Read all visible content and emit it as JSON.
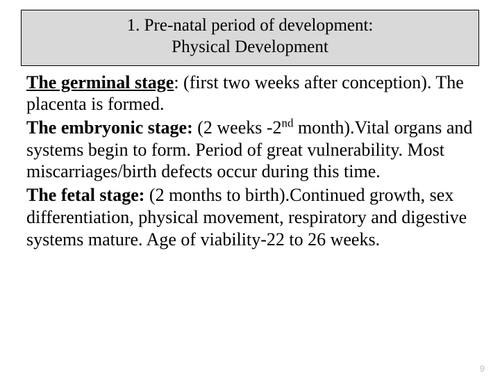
{
  "title": {
    "line1": "1. Pre-natal period of development:",
    "line2": "Physical Development",
    "background_color": "#d9d9d9",
    "border_color": "#000000",
    "fontsize": 25
  },
  "body": {
    "fontsize": 26,
    "text_color": "#000000",
    "stages": {
      "germinal": {
        "label": "The germinal stage",
        "rest": ": (first two weeks after conception). The placenta is formed."
      },
      "embryonic": {
        "label": "The embryonic stage:",
        "pre_sup": " (2 weeks -2",
        "sup": "nd",
        "post_sup": " month).Vital organs and systems begin to form. Period of great vulnerability. Most miscarriages/birth defects occur during this time."
      },
      "fetal": {
        "label": "The fetal stage:",
        "rest": " (2 months to birth).Continued growth, sex differentiation, physical movement, respiratory and digestive systems mature. Age of viability-22 to 26 weeks."
      }
    }
  },
  "page_number": "9",
  "page_number_color": "#bfbfbf",
  "background_color": "#ffffff"
}
